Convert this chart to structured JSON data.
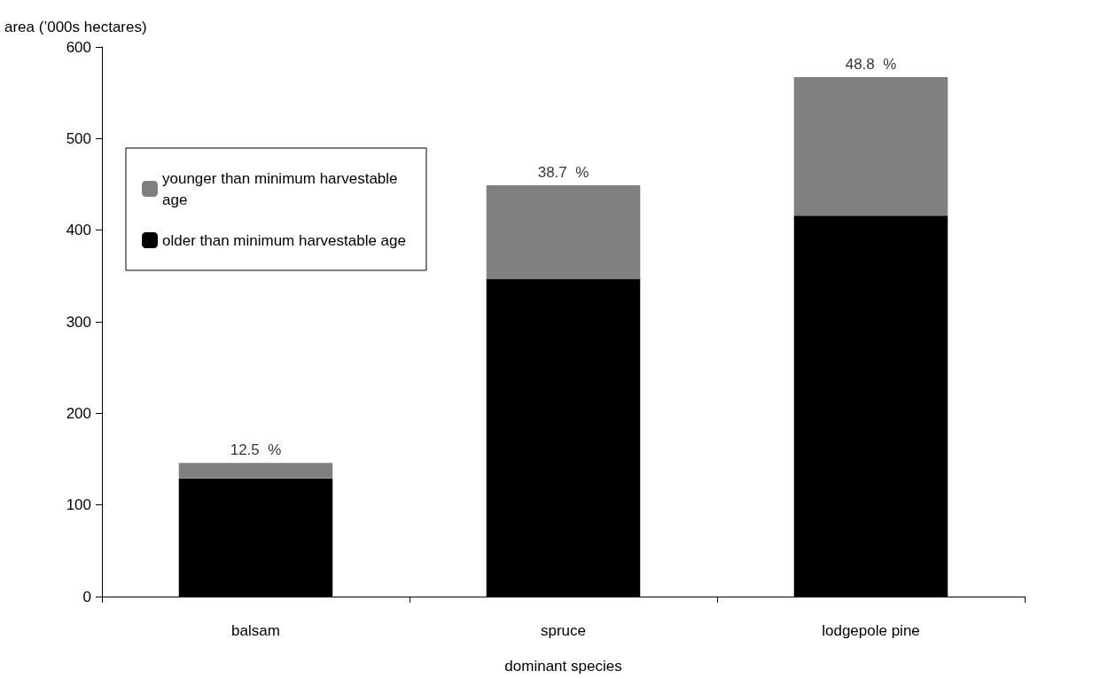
{
  "chart_data": {
    "type": "bar",
    "stacked": true,
    "xlabel": "dominant species",
    "ylabel": "area (’000s hectares)",
    "categories": [
      "balsam",
      "spruce",
      "lodgepole pine"
    ],
    "series": [
      {
        "name": "older than minimum harvestable age",
        "color": "#000000",
        "values": [
          129,
          347,
          416
        ]
      },
      {
        "name": "younger than minimum harvestable age",
        "color": "#808080",
        "values": [
          17,
          102,
          151
        ]
      }
    ],
    "ylim": [
      0,
      600
    ],
    "yticks": [
      0,
      100,
      200,
      300,
      400,
      500,
      600
    ],
    "grid": false,
    "legend": "top left",
    "annotations": [
      {
        "text": "12.5  %",
        "x": "balsam",
        "y": 146
      },
      {
        "text": "38.7  %",
        "x": "spruce",
        "y": 449
      },
      {
        "text": "48.8  %",
        "x": "lodgepole pine",
        "y": 567
      }
    ]
  }
}
